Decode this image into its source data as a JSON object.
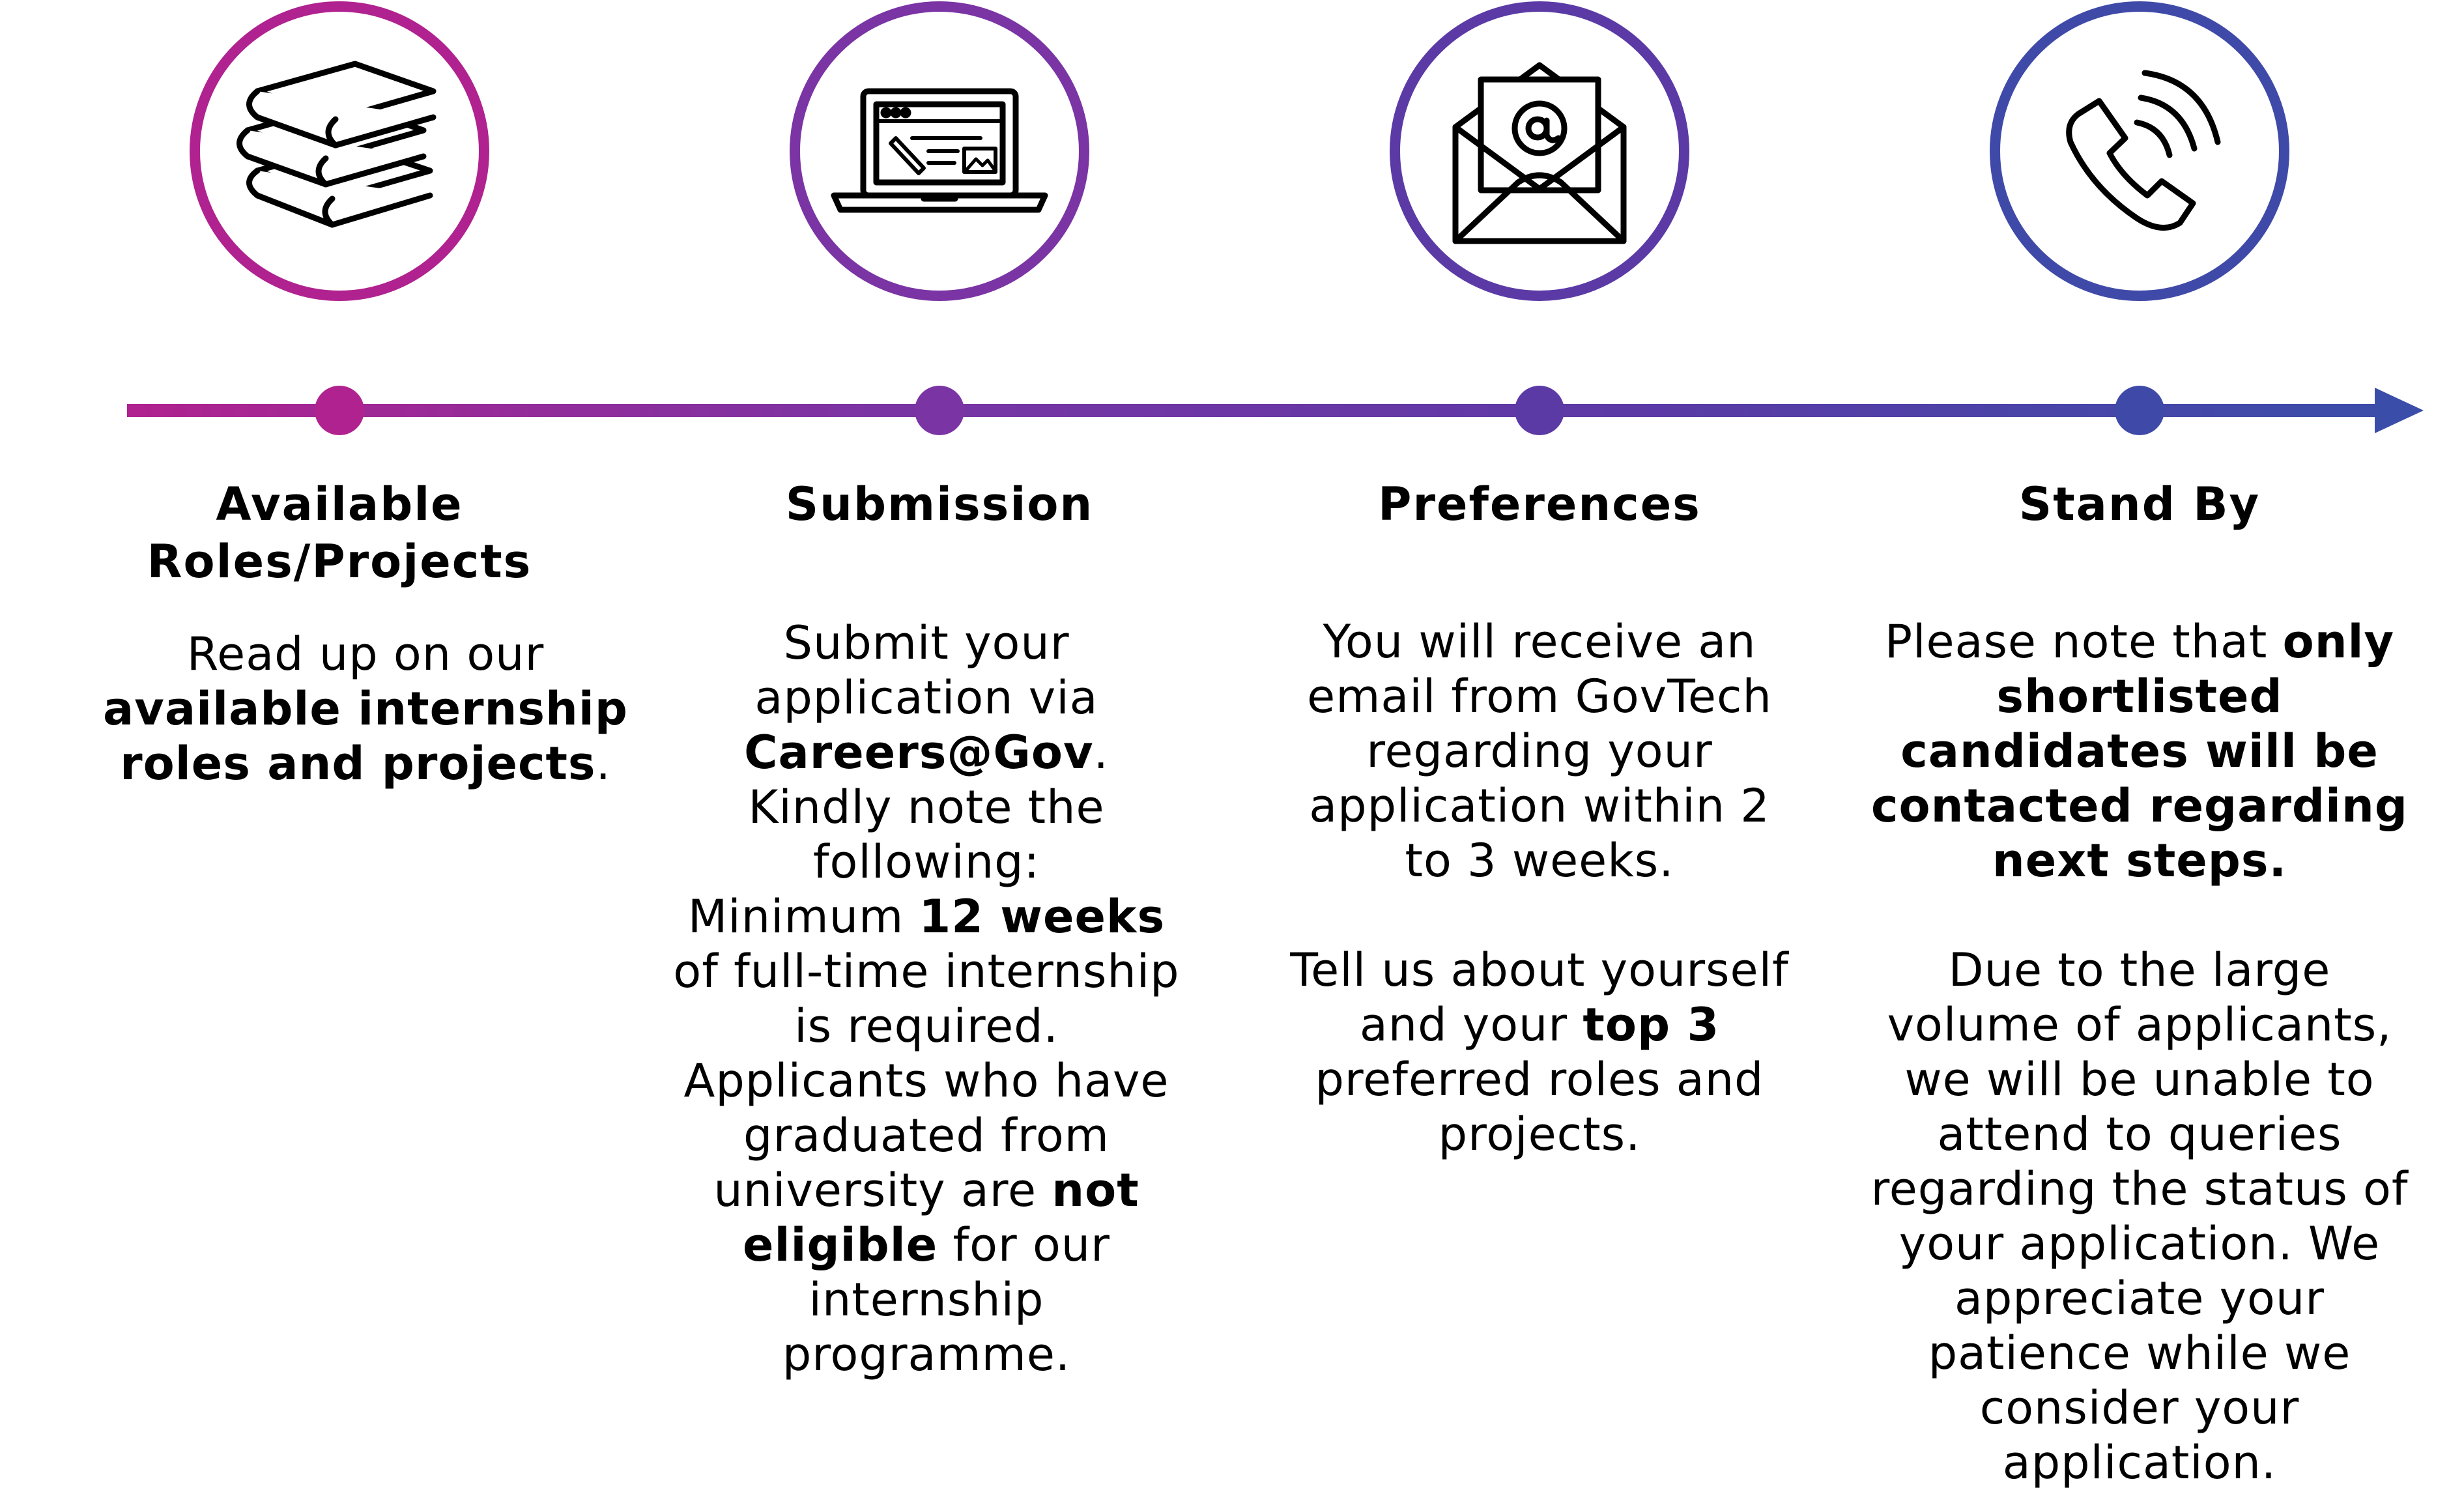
{
  "colors": {
    "step1": "#b0228f",
    "step2": "#7a34a4",
    "step3": "#5b3aa6",
    "step4": "#3f4aa8"
  },
  "timeline": {
    "arrow_icon": "arrow-right-icon",
    "steps": [
      {
        "icon": "books-icon",
        "title_lines": [
          "Available",
          "Roles/Projects"
        ],
        "text": {
          "pre": "Read up on our ",
          "bold": "available internship roles and projects",
          "post": "."
        }
      },
      {
        "icon": "laptop-icon",
        "title": "Submission",
        "text": {
          "line1": "Submit your application via ",
          "bold1": "Careers@Gov",
          "line2": ". Kindly note the following:",
          "min_pre": "Minimum ",
          "min_bold": "12 weeks",
          "min_post": " of full-time internship is required.",
          "grad_pre": "Applicants who have graduated from university are ",
          "grad_bold": "not eligible",
          "grad_post": " for our internship programme."
        }
      },
      {
        "icon": "email-envelope-icon",
        "title": "Preferences",
        "text": {
          "para1": "You will receive an email from GovTech regarding your application within 2 to 3 weeks.",
          "pre": "Tell us about yourself and your ",
          "bold": "top 3",
          "post": " preferred roles and projects."
        }
      },
      {
        "icon": "phone-call-icon",
        "title": "Stand By",
        "text": {
          "pre": "Please note that ",
          "bold": "only shortlisted candidates will be contacted regarding next steps.",
          "para2": "Due to the large volume of applicants, we will be unable to attend to queries regarding the status of your application. We appreciate your patience while we consider your application."
        }
      }
    ]
  }
}
